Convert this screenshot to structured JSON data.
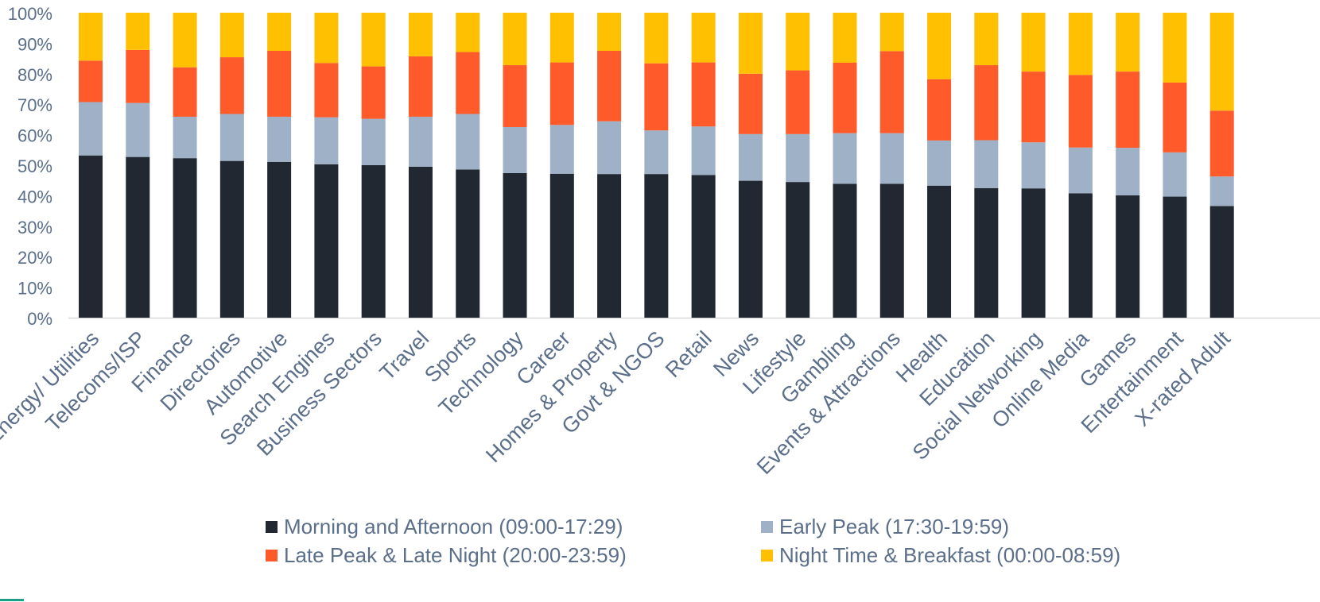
{
  "chart_data": {
    "type": "bar",
    "stacked": true,
    "title": "",
    "xlabel": "",
    "ylabel": "",
    "ylim": [
      0,
      100
    ],
    "yticks": [
      "0%",
      "10%",
      "20%",
      "30%",
      "40%",
      "50%",
      "60%",
      "70%",
      "80%",
      "90%",
      "100%"
    ],
    "categories": [
      "Energy/ Utilities",
      "Telecoms/ISP",
      "Finance",
      "Directories",
      "Automotive",
      "Search Engines",
      "Business Sectors",
      "Travel",
      "Sports",
      "Technology",
      "Career",
      "Homes & Property",
      "Govt & NGOS",
      "Retail",
      "News",
      "Lifestyle",
      "Gambling",
      "Events & Attractions",
      "Health",
      "Education",
      "Social Networking",
      "Online Media",
      "Games",
      "Entertainment",
      "X-rated Adult"
    ],
    "series": [
      {
        "name": "Morning and Afternoon (09:00-17:29)",
        "color": "#212832",
        "values": [
          53.2,
          52.7,
          52.3,
          51.4,
          51.1,
          50.3,
          50.0,
          49.5,
          48.6,
          47.4,
          47.2,
          47.1,
          47.1,
          46.8,
          44.9,
          44.5,
          43.9,
          43.9,
          43.3,
          42.5,
          42.4,
          40.8,
          40.1,
          39.7,
          36.6
        ]
      },
      {
        "name": "Early Peak (17:30-19:59)",
        "color": "#9fb1c6",
        "values": [
          17.5,
          17.7,
          13.6,
          15.4,
          14.8,
          15.4,
          15.2,
          16.4,
          18.2,
          15.1,
          16.0,
          17.3,
          14.3,
          15.9,
          15.3,
          15.7,
          16.6,
          16.6,
          14.8,
          15.7,
          15.1,
          15.0,
          15.6,
          14.5,
          9.7
        ]
      },
      {
        "name": "Late Peak & Late Night (20:00-23:59)",
        "color": "#fe5a2a",
        "values": [
          13.6,
          17.4,
          16.2,
          18.6,
          21.6,
          17.8,
          17.2,
          19.8,
          20.3,
          20.3,
          20.5,
          23.1,
          22.0,
          21.0,
          19.8,
          20.9,
          23.1,
          26.9,
          20.1,
          24.6,
          23.2,
          23.8,
          25.0,
          22.9,
          21.6
        ]
      },
      {
        "name": "Night Time & Breakfast (00:00-08:59)",
        "color": "#ffc002",
        "values": [
          15.7,
          12.2,
          17.9,
          14.6,
          12.5,
          16.5,
          17.6,
          14.3,
          12.9,
          17.2,
          16.3,
          12.5,
          16.6,
          16.3,
          20.0,
          18.9,
          16.4,
          12.6,
          21.8,
          17.2,
          19.3,
          20.4,
          19.3,
          22.9,
          32.1
        ]
      }
    ],
    "grid": false,
    "legend_position": "bottom"
  }
}
